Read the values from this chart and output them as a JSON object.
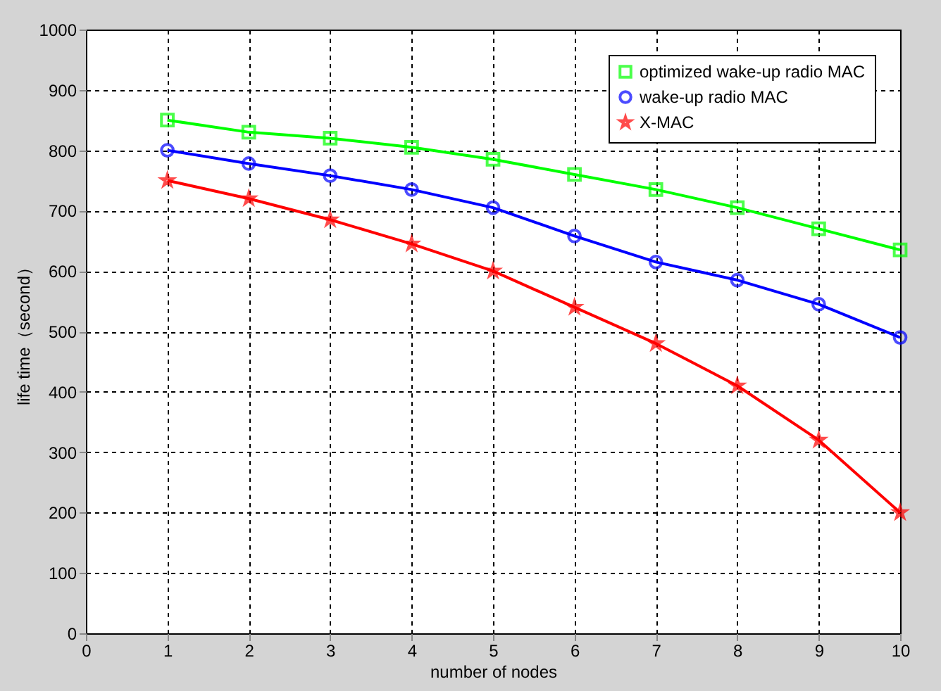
{
  "chart_data": {
    "type": "line",
    "xlabel": "number of nodes",
    "ylabel": "life time（second）",
    "x": [
      1,
      2,
      3,
      4,
      5,
      6,
      7,
      8,
      9,
      10
    ],
    "series": [
      {
        "name": "optimized wake-up radio MAC",
        "color": "#00ff00",
        "marker": "square",
        "values": [
          850,
          830,
          820,
          805,
          785,
          760,
          735,
          705,
          670,
          635
        ]
      },
      {
        "name": "wake-up radio MAC",
        "color": "#0000ff",
        "marker": "circle",
        "values": [
          800,
          778,
          758,
          735,
          705,
          658,
          615,
          585,
          545,
          490
        ]
      },
      {
        "name": "X-MAC",
        "color": "#ff0000",
        "marker": "star",
        "values": [
          750,
          720,
          685,
          645,
          600,
          540,
          480,
          410,
          320,
          200
        ]
      }
    ],
    "xlim": [
      0,
      10
    ],
    "xticks": [
      0,
      1,
      2,
      3,
      4,
      5,
      6,
      7,
      8,
      9,
      10
    ],
    "ylim": [
      0,
      1000
    ],
    "yticks": [
      0,
      100,
      200,
      300,
      400,
      500,
      600,
      700,
      800,
      900,
      1000
    ],
    "grid": true,
    "legend": "top right",
    "line_style": "solid"
  }
}
